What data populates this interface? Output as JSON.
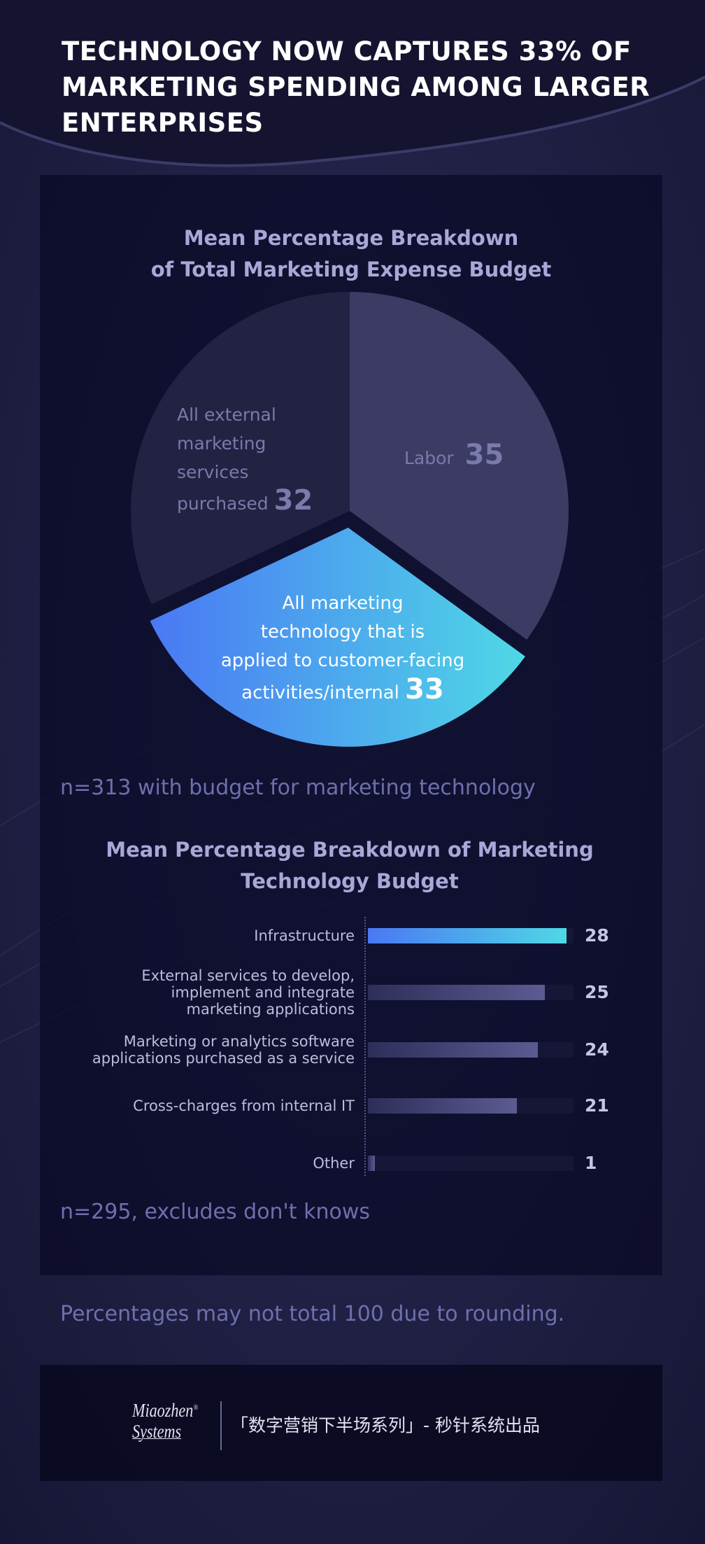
{
  "page": {
    "title_lines": [
      "TECHNOLOGY NOW CAPTURES 33% OF",
      "MARKETING SPENDING AMONG LARGER",
      "ENTERPRISES"
    ],
    "footnote": "Percentages may not total 100 due to rounding."
  },
  "chart_data": [
    {
      "type": "pie",
      "title_lines": [
        "Mean Percentage Breakdown",
        "of Total Marketing Expense Budget"
      ],
      "slices": [
        {
          "label_lines": [
            "Labor"
          ],
          "value": 35
        },
        {
          "label_lines": [
            "All marketing",
            "technology that is",
            "applied to customer-facing",
            "activities/internal"
          ],
          "value": 33,
          "highlight": true
        },
        {
          "label_lines": [
            "All external",
            "marketing",
            "services",
            "purchased"
          ],
          "value": 32
        }
      ],
      "note": "n=313 with budget for marketing technology",
      "colors": {
        "labor": "#3b3b64",
        "external": "#222242",
        "tech_start": "#4a78f4",
        "tech_end": "#4fd8e6"
      }
    },
    {
      "type": "bar",
      "orientation": "horizontal",
      "title_lines": [
        "Mean Percentage Breakdown of Marketing",
        "Technology Budget"
      ],
      "categories": [
        {
          "label_lines": [
            "Infrastructure"
          ],
          "value": 28,
          "highlight": true
        },
        {
          "label_lines": [
            "External services to develop,",
            "implement and integrate",
            "marketing applications"
          ],
          "value": 25
        },
        {
          "label_lines": [
            "Marketing or analytics software",
            "applications purchased as a service"
          ],
          "value": 24
        },
        {
          "label_lines": [
            "Cross-charges from internal IT"
          ],
          "value": 21
        },
        {
          "label_lines": [
            "Other"
          ],
          "value": 1
        }
      ],
      "xlim": [
        0,
        29
      ],
      "note": "n=295, excludes don't knows",
      "colors": {
        "bar_start": "#2e2e5a",
        "bar_end": "#5b5b92",
        "highlight_start": "#4a78f4",
        "highlight_end": "#4fd8e6"
      }
    }
  ],
  "footer": {
    "logo_top": "Miaozhen",
    "logo_bottom": "Systems",
    "logo_mark": "®",
    "tagline": "「数字营销下半场系列」- 秒针系统出品"
  }
}
